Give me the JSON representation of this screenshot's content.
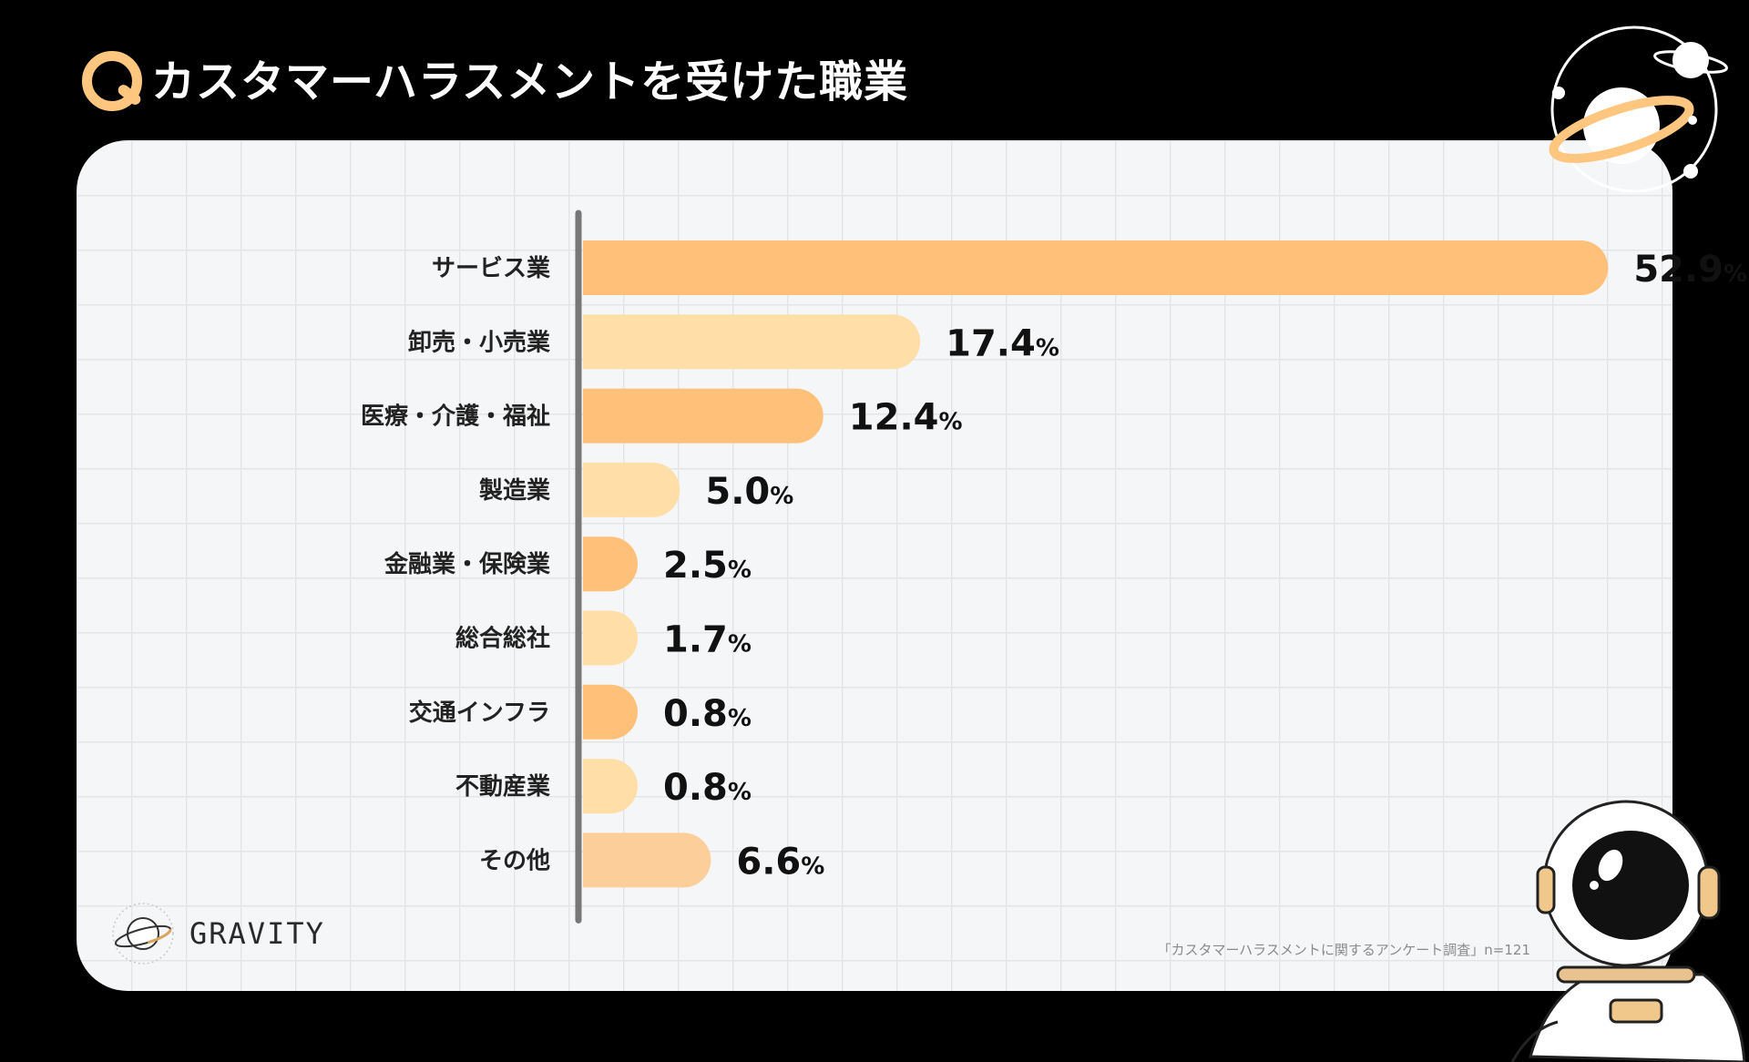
{
  "header": {
    "title": "カスタマーハラスメントを受けた職業"
  },
  "brand": {
    "name": "GRAVITY"
  },
  "footer": {
    "source": "「カスタマーハラスメントに関するアンケート調査」n=121"
  },
  "colors": {
    "accent": "#FEC67E",
    "bar_dark": "#FFC07A",
    "bar_light": "#FFDEA7",
    "bar_other": "#FCCF9A",
    "axis": "#777777"
  },
  "chart_data": {
    "type": "bar",
    "orientation": "horizontal",
    "title": "カスタマーハラスメントを受けた職業",
    "xlabel": "",
    "ylabel": "",
    "unit": "%",
    "xlim": [
      0,
      55
    ],
    "categories": [
      "サービス業",
      "卸売・小売業",
      "医療・介護・福祉",
      "製造業",
      "金融業・保険業",
      "総合総社",
      "交通インフラ",
      "不動産業",
      "その他"
    ],
    "values": [
      52.9,
      17.4,
      12.4,
      5.0,
      2.5,
      1.7,
      0.8,
      0.8,
      6.6
    ],
    "labels": [
      "52.9",
      "17.4",
      "12.4",
      "5.0",
      "2.5",
      "1.7",
      "0.8",
      "0.8",
      "6.6"
    ],
    "bar_colors": [
      "#FFC07A",
      "#FFDEA7",
      "#FFC07A",
      "#FFDEA7",
      "#FFC07A",
      "#FFDEA7",
      "#FFC07A",
      "#FFDEA7",
      "#FCCF9A"
    ]
  }
}
